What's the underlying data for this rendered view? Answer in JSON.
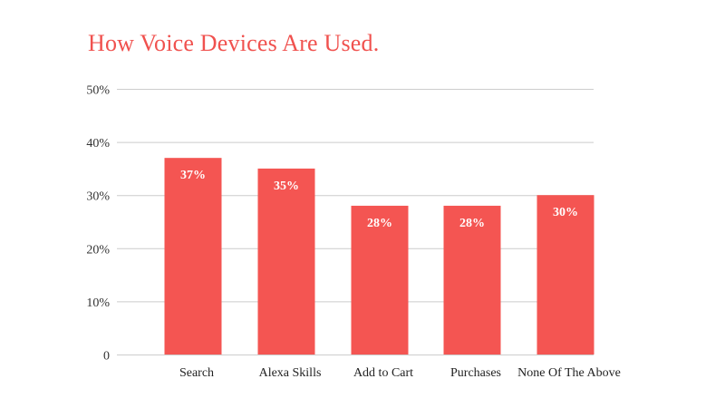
{
  "chart_data": {
    "type": "bar",
    "title": "How Voice Devices Are Used.",
    "categories": [
      "Search",
      "Alexa Skills",
      "Add to Cart",
      "Purchases",
      "None Of The Above"
    ],
    "values": [
      37,
      35,
      28,
      28,
      30
    ],
    "data_labels": [
      "37%",
      "35%",
      "28%",
      "28%",
      "30%"
    ],
    "y_ticks": [
      0,
      10,
      20,
      30,
      40,
      50
    ],
    "y_tick_labels": [
      "0",
      "10%",
      "20%",
      "30%",
      "40%",
      "50%"
    ],
    "xlabel": "",
    "ylabel": "",
    "ylim": [
      0,
      50
    ],
    "grid": true,
    "legend": "none"
  },
  "colors": {
    "accent": "#f0514e",
    "bar": "#f45552",
    "grid": "#cccccc"
  }
}
